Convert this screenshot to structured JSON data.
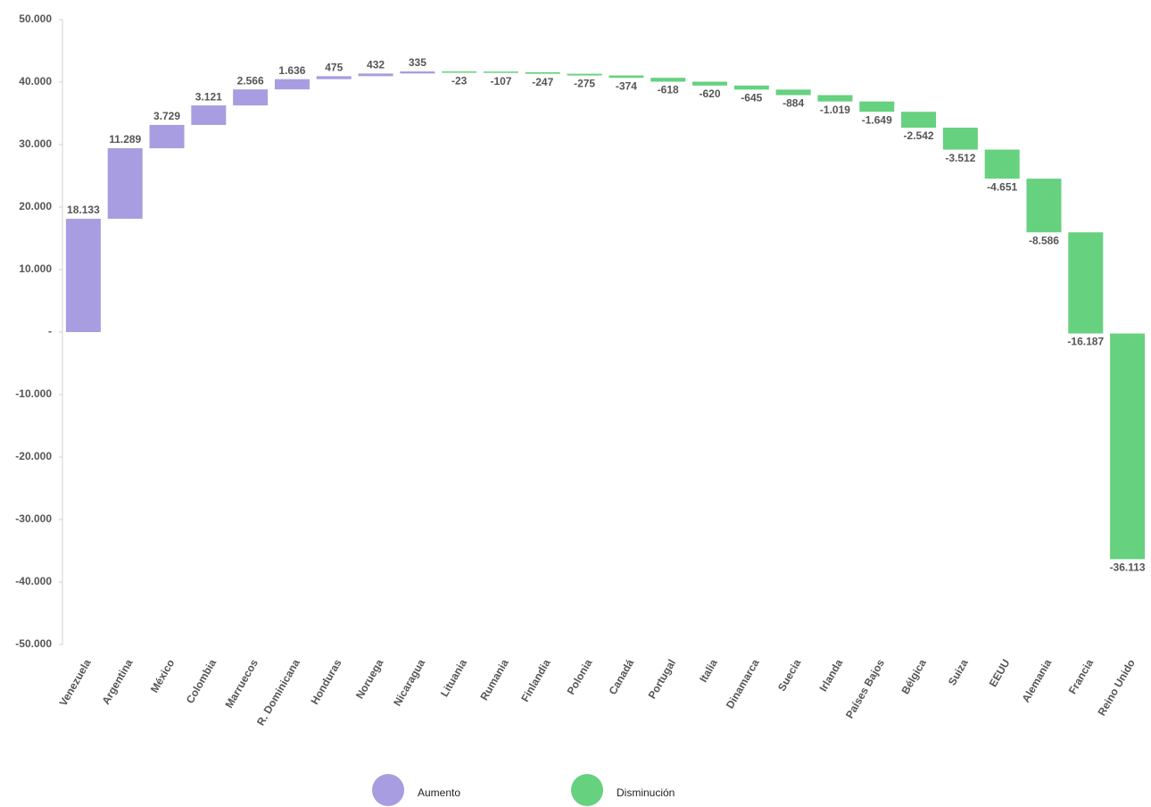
{
  "chart_data": {
    "type": "waterfall",
    "categories": [
      "Venezuela",
      "Argentina",
      "México",
      "Colombia",
      "Marruecos",
      "R. Dominicana",
      "Honduras",
      "Noruega",
      "Nicaragua",
      "Lituania",
      "Rumania",
      "Finlandia",
      "Polonia",
      "Canadá",
      "Portugal",
      "Italia",
      "Dinamarca",
      "Suecia",
      "Irlanda",
      "Países Bajos",
      "Bélgica",
      "Suiza",
      "EEUU",
      "Alemania",
      "Francia",
      "Reino Unido"
    ],
    "values": [
      18133,
      11289,
      3729,
      3121,
      2566,
      1636,
      475,
      432,
      335,
      -23,
      -107,
      -247,
      -275,
      -374,
      -618,
      -620,
      -645,
      -884,
      -1019,
      -1649,
      -2542,
      -3512,
      -4651,
      -8586,
      -16187,
      -36113
    ],
    "value_labels": [
      "18.133",
      "11.289",
      "3.729",
      "3.121",
      "2.566",
      "1.636",
      "475",
      "432",
      "335",
      "-23",
      "-107",
      "-247",
      "-275",
      "-374",
      "-618",
      "-620",
      "-645",
      "-884",
      "-1.019",
      "-1.649",
      "-2.542",
      "-3.512",
      "-4.651",
      "-8.586",
      "-16.187",
      "-36.113"
    ],
    "ylim": [
      -50000,
      50000
    ],
    "yticks": [
      {
        "value": 50000,
        "label": "50.000"
      },
      {
        "value": 40000,
        "label": "40.000"
      },
      {
        "value": 30000,
        "label": "30.000"
      },
      {
        "value": 20000,
        "label": "20.000"
      },
      {
        "value": 10000,
        "label": "10.000"
      },
      {
        "value": 0,
        "label": "-"
      },
      {
        "value": -10000,
        "label": "-10.000"
      },
      {
        "value": -20000,
        "label": "-20.000"
      },
      {
        "value": -30000,
        "label": "-30.000"
      },
      {
        "value": -40000,
        "label": "-40.000"
      },
      {
        "value": -50000,
        "label": "-50.000"
      }
    ],
    "legend": [
      {
        "name": "Aumento",
        "color": "#a89de0"
      },
      {
        "name": "Disminución",
        "color": "#66d17f"
      }
    ]
  }
}
